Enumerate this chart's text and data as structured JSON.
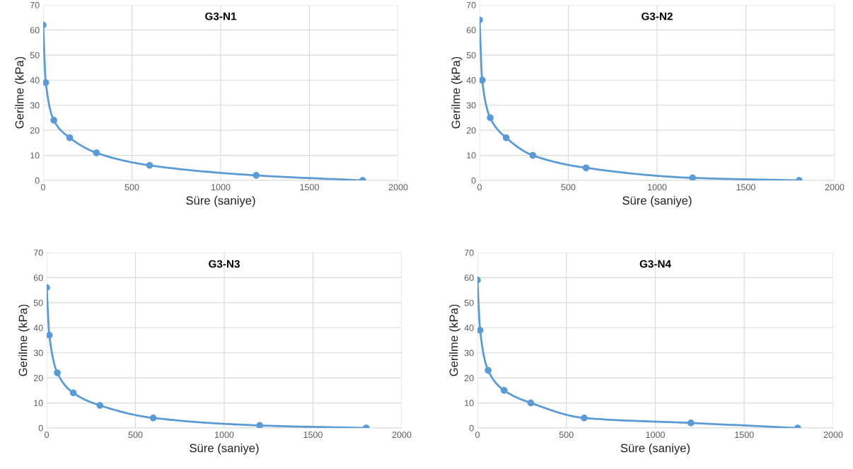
{
  "chart_data": [
    {
      "type": "line",
      "title": "G3-N1",
      "xlabel": "Süre (saniye)",
      "ylabel": "Gerilme (kPa)",
      "x": [
        0,
        15,
        60,
        150,
        300,
        600,
        1200,
        1800
      ],
      "series": [
        {
          "color": "#5b9bd5",
          "values": [
            62,
            39,
            24,
            17,
            11,
            6,
            2,
            0
          ]
        }
      ],
      "xlim": [
        0,
        2000
      ],
      "xticks": [
        0,
        500,
        1000,
        1500,
        2000
      ],
      "ylim": [
        0,
        70
      ],
      "yticks": [
        0,
        10,
        20,
        30,
        40,
        50,
        60,
        70
      ],
      "grid": true,
      "marker": "circle",
      "line_style": "solid"
    },
    {
      "type": "line",
      "title": "G3-N2",
      "xlabel": "Süre (saniye)",
      "ylabel": "Gerilme (kPa)",
      "x": [
        0,
        15,
        60,
        150,
        300,
        600,
        1200,
        1800
      ],
      "series": [
        {
          "color": "#5b9bd5",
          "values": [
            64,
            40,
            25,
            17,
            10,
            5,
            1,
            0
          ]
        }
      ],
      "xlim": [
        0,
        2000
      ],
      "xticks": [
        0,
        500,
        1000,
        1500,
        2000
      ],
      "ylim": [
        0,
        70
      ],
      "yticks": [
        0,
        10,
        20,
        30,
        40,
        50,
        60,
        70
      ],
      "grid": true,
      "marker": "circle",
      "line_style": "solid"
    },
    {
      "type": "line",
      "title": "G3-N3",
      "xlabel": "Süre (saniye)",
      "ylabel": "Gerilme (kPa)",
      "x": [
        0,
        15,
        60,
        150,
        300,
        600,
        1200,
        1800
      ],
      "series": [
        {
          "color": "#5b9bd5",
          "values": [
            56,
            37,
            22,
            14,
            9,
            4,
            1,
            0
          ]
        }
      ],
      "xlim": [
        0,
        2000
      ],
      "xticks": [
        0,
        500,
        1000,
        1500,
        2000
      ],
      "ylim": [
        0,
        70
      ],
      "yticks": [
        0,
        10,
        20,
        30,
        40,
        50,
        60,
        70
      ],
      "grid": true,
      "marker": "circle",
      "line_style": "solid"
    },
    {
      "type": "line",
      "title": "G3-N4",
      "xlabel": "Süre (saniye)",
      "ylabel": "Gerilme (kPa)",
      "x": [
        0,
        15,
        60,
        150,
        300,
        600,
        1200,
        1800
      ],
      "series": [
        {
          "color": "#5b9bd5",
          "values": [
            59,
            39,
            23,
            15,
            10,
            4,
            2,
            0
          ]
        }
      ],
      "xlim": [
        0,
        2000
      ],
      "xticks": [
        0,
        500,
        1000,
        1500,
        2000
      ],
      "ylim": [
        0,
        70
      ],
      "yticks": [
        0,
        10,
        20,
        30,
        40,
        50,
        60,
        70
      ],
      "grid": true,
      "marker": "circle",
      "line_style": "solid"
    }
  ]
}
